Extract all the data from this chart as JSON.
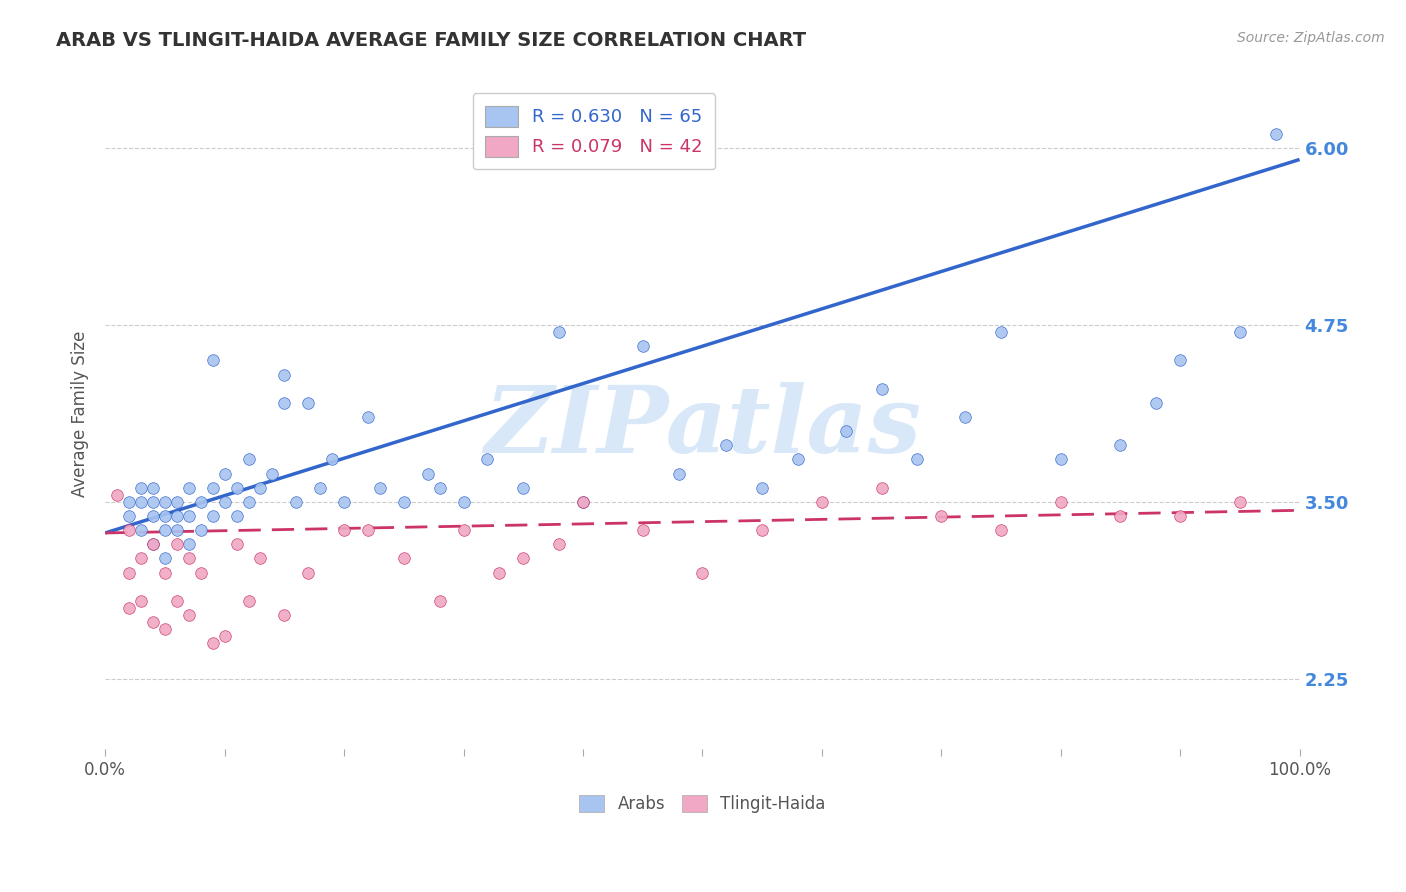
{
  "title": "ARAB VS TLINGIT-HAIDA AVERAGE FAMILY SIZE CORRELATION CHART",
  "source": "Source: ZipAtlas.com",
  "ylabel": "Average Family Size",
  "xlim": [
    0.0,
    1.0
  ],
  "ylim": [
    1.75,
    6.5
  ],
  "yticks": [
    2.25,
    3.5,
    4.75,
    6.0
  ],
  "xtick_positions": [
    0.0,
    0.1,
    0.2,
    0.3,
    0.4,
    0.5,
    0.6,
    0.7,
    0.8,
    0.9,
    1.0
  ],
  "xtick_labels_outer": [
    "0.0%",
    "",
    "",
    "",
    "",
    "",
    "",
    "",
    "",
    "",
    "100.0%"
  ],
  "arab_R": 0.63,
  "arab_N": 65,
  "tlingit_R": 0.079,
  "tlingit_N": 42,
  "arab_color": "#a8c4f0",
  "tlingit_color": "#f0a8c4",
  "arab_line_color": "#3366cc",
  "tlingit_line_color": "#cc3366",
  "legend_label_arab": "Arabs",
  "legend_label_tlingit": "Tlingit-Haida",
  "arab_line_x0": 0.0,
  "arab_line_y0": 3.28,
  "arab_line_x1": 1.0,
  "arab_line_y1": 5.92,
  "tlingit_line_x0": 0.0,
  "tlingit_line_y0": 3.28,
  "tlingit_line_x1": 1.0,
  "tlingit_line_y1": 3.44,
  "arab_x": [
    0.02,
    0.02,
    0.03,
    0.03,
    0.03,
    0.04,
    0.04,
    0.04,
    0.04,
    0.05,
    0.05,
    0.05,
    0.05,
    0.06,
    0.06,
    0.06,
    0.07,
    0.07,
    0.07,
    0.08,
    0.08,
    0.09,
    0.09,
    0.09,
    0.1,
    0.1,
    0.11,
    0.11,
    0.12,
    0.12,
    0.13,
    0.14,
    0.15,
    0.15,
    0.16,
    0.17,
    0.18,
    0.19,
    0.2,
    0.22,
    0.23,
    0.25,
    0.27,
    0.28,
    0.3,
    0.32,
    0.35,
    0.38,
    0.4,
    0.45,
    0.48,
    0.52,
    0.55,
    0.58,
    0.62,
    0.65,
    0.68,
    0.72,
    0.75,
    0.8,
    0.85,
    0.88,
    0.9,
    0.95,
    0.98
  ],
  "arab_y": [
    3.4,
    3.5,
    3.3,
    3.5,
    3.6,
    3.2,
    3.4,
    3.5,
    3.6,
    3.1,
    3.3,
    3.4,
    3.5,
    3.3,
    3.4,
    3.5,
    3.2,
    3.4,
    3.6,
    3.3,
    3.5,
    3.4,
    3.6,
    4.5,
    3.5,
    3.7,
    3.4,
    3.6,
    3.5,
    3.8,
    3.6,
    3.7,
    4.2,
    4.4,
    3.5,
    4.2,
    3.6,
    3.8,
    3.5,
    4.1,
    3.6,
    3.5,
    3.7,
    3.6,
    3.5,
    3.8,
    3.6,
    4.7,
    3.5,
    4.6,
    3.7,
    3.9,
    3.6,
    3.8,
    4.0,
    4.3,
    3.8,
    4.1,
    4.7,
    3.8,
    3.9,
    4.2,
    4.5,
    4.7,
    6.1
  ],
  "tlingit_x": [
    0.01,
    0.02,
    0.02,
    0.02,
    0.03,
    0.03,
    0.04,
    0.04,
    0.05,
    0.05,
    0.06,
    0.06,
    0.07,
    0.07,
    0.08,
    0.09,
    0.1,
    0.11,
    0.12,
    0.13,
    0.15,
    0.17,
    0.2,
    0.22,
    0.25,
    0.28,
    0.3,
    0.33,
    0.35,
    0.38,
    0.4,
    0.45,
    0.5,
    0.55,
    0.6,
    0.65,
    0.7,
    0.75,
    0.8,
    0.85,
    0.9,
    0.95
  ],
  "tlingit_y": [
    3.55,
    2.75,
    3.0,
    3.3,
    2.8,
    3.1,
    2.65,
    3.2,
    2.6,
    3.0,
    2.8,
    3.2,
    2.7,
    3.1,
    3.0,
    2.5,
    2.55,
    3.2,
    2.8,
    3.1,
    2.7,
    3.0,
    3.3,
    3.3,
    3.1,
    2.8,
    3.3,
    3.0,
    3.1,
    3.2,
    3.5,
    3.3,
    3.0,
    3.3,
    3.5,
    3.6,
    3.4,
    3.3,
    3.5,
    3.4,
    3.4,
    3.5
  ],
  "background_color": "#ffffff",
  "grid_color": "#cccccc",
  "title_color": "#333333",
  "axis_label_color": "#555555",
  "right_tick_color": "#4488dd",
  "watermark_color": "#d8e8f8",
  "watermark_text": "ZIPatlas"
}
